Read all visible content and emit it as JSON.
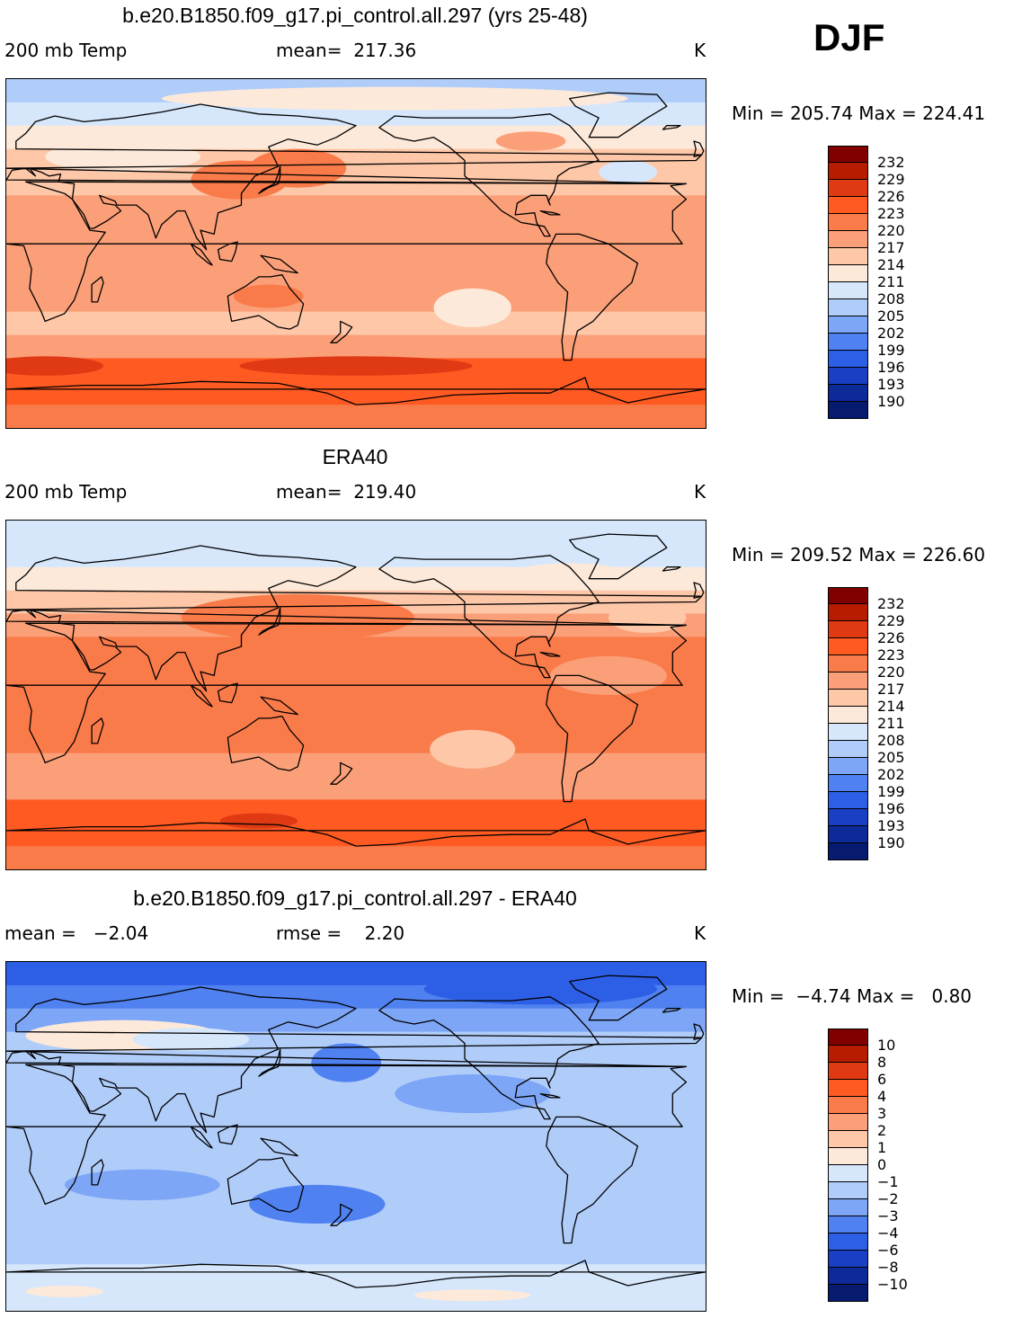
{
  "season": "DJF",
  "panels": [
    {
      "id": "model",
      "title": "b.e20.B1850.f09_g17.pi_control.all.297 (yrs 25-48)",
      "left_label": "200 mb Temp",
      "center_label": "mean=  217.36",
      "units": "K",
      "min_max": "Min = 205.74 Max = 224.41",
      "colorbar": {
        "labels": [
          "232",
          "229",
          "226",
          "223",
          "220",
          "217",
          "214",
          "211",
          "208",
          "205",
          "202",
          "199",
          "196",
          "193",
          "190"
        ],
        "colors": [
          "#800000",
          "#b81c00",
          "#e03a14",
          "#ff5a22",
          "#fa7b4a",
          "#fb9f78",
          "#fdc7a8",
          "#fde9da",
          "#d6e7fc",
          "#b0cdfa",
          "#7ea6f6",
          "#4f81f0",
          "#2d5fe6",
          "#1b3fc4",
          "#0c2a98",
          "#061a70"
        ]
      },
      "field": {
        "levels": [
          "#061a70",
          "#0c2a98",
          "#1b3fc4",
          "#2d5fe6",
          "#4f81f0",
          "#7ea6f6",
          "#b0cdfa",
          "#d6e7fc",
          "#fde9da",
          "#fdc7a8",
          "#fb9f78",
          "#fa7b4a",
          "#ff5a22",
          "#e03a14",
          "#b81c00",
          "#800000"
        ],
        "base": 10,
        "lat_bands": [
          [
            90,
            6
          ],
          [
            78,
            7
          ],
          [
            66,
            8
          ],
          [
            54,
            9
          ],
          [
            42,
            9
          ],
          [
            30,
            10
          ],
          [
            18,
            10
          ],
          [
            6,
            10
          ],
          [
            -6,
            10
          ],
          [
            -18,
            10
          ],
          [
            -30,
            9
          ],
          [
            -42,
            10
          ],
          [
            -54,
            12
          ],
          [
            -66,
            12
          ],
          [
            -78,
            11
          ],
          [
            -90,
            10
          ]
        ],
        "anomalies": [
          {
            "lon": 120,
            "lat": 38,
            "rlon": 25,
            "rlat": 10,
            "level": 11
          },
          {
            "lon": 150,
            "lat": 44,
            "rlon": 25,
            "rlat": 10,
            "level": 11
          },
          {
            "lon": 135,
            "lat": -22,
            "rlon": 18,
            "rlat": 6,
            "level": 11
          },
          {
            "lon": 240,
            "lat": -28,
            "rlon": 20,
            "rlat": 10,
            "level": 8
          },
          {
            "lon": 290,
            "lat": 38,
            "rlon": 40,
            "rlat": 6,
            "level": 9
          },
          {
            "lon": 320,
            "lat": 42,
            "rlon": 15,
            "rlat": 6,
            "level": 7
          },
          {
            "lon": 270,
            "lat": 58,
            "rlon": 18,
            "rlat": 5,
            "level": 10
          },
          {
            "lon": 20,
            "lat": -58,
            "rlon": 30,
            "rlat": 5,
            "level": 13
          },
          {
            "lon": 180,
            "lat": -58,
            "rlon": 60,
            "rlat": 5,
            "level": 13
          },
          {
            "lon": 60,
            "lat": 50,
            "rlon": 40,
            "rlat": 8,
            "level": 8
          },
          {
            "lon": 200,
            "lat": 80,
            "rlon": 120,
            "rlat": 6,
            "level": 8
          }
        ]
      }
    },
    {
      "id": "obs",
      "title": "ERA40",
      "left_label": "200 mb Temp",
      "center_label": "mean=  219.40",
      "units": "K",
      "min_max": "Min = 209.52 Max = 226.60",
      "colorbar": {
        "labels": [
          "232",
          "229",
          "226",
          "223",
          "220",
          "217",
          "214",
          "211",
          "208",
          "205",
          "202",
          "199",
          "196",
          "193",
          "190"
        ],
        "colors": [
          "#800000",
          "#b81c00",
          "#e03a14",
          "#ff5a22",
          "#fa7b4a",
          "#fb9f78",
          "#fdc7a8",
          "#fde9da",
          "#d6e7fc",
          "#b0cdfa",
          "#7ea6f6",
          "#4f81f0",
          "#2d5fe6",
          "#1b3fc4",
          "#0c2a98",
          "#061a70"
        ]
      },
      "field": {
        "levels": [
          "#061a70",
          "#0c2a98",
          "#1b3fc4",
          "#2d5fe6",
          "#4f81f0",
          "#7ea6f6",
          "#b0cdfa",
          "#d6e7fc",
          "#fde9da",
          "#fdc7a8",
          "#fb9f78",
          "#fa7b4a",
          "#ff5a22",
          "#e03a14",
          "#b81c00",
          "#800000"
        ],
        "base": 10,
        "lat_bands": [
          [
            90,
            7
          ],
          [
            78,
            7
          ],
          [
            66,
            8
          ],
          [
            54,
            9
          ],
          [
            42,
            10
          ],
          [
            30,
            11
          ],
          [
            18,
            11
          ],
          [
            6,
            11
          ],
          [
            -6,
            11
          ],
          [
            -18,
            11
          ],
          [
            -30,
            10
          ],
          [
            -42,
            10
          ],
          [
            -54,
            12
          ],
          [
            -66,
            12
          ],
          [
            -78,
            11
          ],
          [
            -90,
            11
          ]
        ],
        "anomalies": [
          {
            "lon": 150,
            "lat": 40,
            "rlon": 60,
            "rlat": 12,
            "level": 11
          },
          {
            "lon": 240,
            "lat": -28,
            "rlon": 22,
            "rlat": 10,
            "level": 9
          },
          {
            "lon": 310,
            "lat": 10,
            "rlon": 30,
            "rlat": 10,
            "level": 10
          },
          {
            "lon": 130,
            "lat": -65,
            "rlon": 20,
            "rlat": 4,
            "level": 13
          },
          {
            "lon": 290,
            "lat": 62,
            "rlon": 30,
            "rlat": 6,
            "level": 8
          },
          {
            "lon": 330,
            "lat": 40,
            "rlon": 20,
            "rlat": 8,
            "level": 9
          }
        ]
      }
    },
    {
      "id": "diff",
      "title": "b.e20.B1850.f09_g17.pi_control.all.297 - ERA40",
      "left_label": "mean =   −2.04",
      "center_label": "rmse =    2.20",
      "units": "K",
      "min_max": "Min =  −4.74 Max =   0.80",
      "colorbar": {
        "labels": [
          "10",
          "8",
          "6",
          "4",
          "3",
          "2",
          "1",
          "0",
          "−1",
          "−2",
          "−3",
          "−4",
          "−6",
          "−8",
          "−10"
        ],
        "colors": [
          "#800000",
          "#b81c00",
          "#e03a14",
          "#ff5a22",
          "#fa7b4a",
          "#fb9f78",
          "#fdc7a8",
          "#fde9da",
          "#d6e7fc",
          "#b0cdfa",
          "#7ea6f6",
          "#4f81f0",
          "#2d5fe6",
          "#1b3fc4",
          "#0c2a98",
          "#061a70"
        ]
      },
      "field": {
        "levels": [
          "#061a70",
          "#0c2a98",
          "#1b3fc4",
          "#2d5fe6",
          "#4f81f0",
          "#7ea6f6",
          "#b0cdfa",
          "#d6e7fc",
          "#fde9da",
          "#fdc7a8",
          "#fb9f78",
          "#fa7b4a",
          "#ff5a22",
          "#e03a14",
          "#b81c00",
          "#800000"
        ],
        "base": 6,
        "lat_bands": [
          [
            90,
            3
          ],
          [
            78,
            4
          ],
          [
            66,
            5
          ],
          [
            54,
            6
          ],
          [
            42,
            6
          ],
          [
            30,
            6
          ],
          [
            18,
            6
          ],
          [
            6,
            6
          ],
          [
            -6,
            6
          ],
          [
            -18,
            6
          ],
          [
            -30,
            6
          ],
          [
            -42,
            6
          ],
          [
            -54,
            6
          ],
          [
            -66,
            7
          ],
          [
            -78,
            7
          ],
          [
            -90,
            7
          ]
        ],
        "anomalies": [
          {
            "lon": 60,
            "lat": 52,
            "rlon": 50,
            "rlat": 8,
            "level": 8
          },
          {
            "lon": 95,
            "lat": 50,
            "rlon": 30,
            "rlat": 6,
            "level": 7
          },
          {
            "lon": 175,
            "lat": 38,
            "rlon": 18,
            "rlat": 10,
            "level": 4
          },
          {
            "lon": 160,
            "lat": -35,
            "rlon": 35,
            "rlat": 10,
            "level": 4
          },
          {
            "lon": 240,
            "lat": 22,
            "rlon": 40,
            "rlat": 10,
            "level": 5
          },
          {
            "lon": 275,
            "lat": 76,
            "rlon": 60,
            "rlat": 8,
            "level": 3
          },
          {
            "lon": 70,
            "lat": -25,
            "rlon": 40,
            "rlat": 8,
            "level": 5
          },
          {
            "lon": 30,
            "lat": -80,
            "rlon": 20,
            "rlat": 3,
            "level": 8
          },
          {
            "lon": 240,
            "lat": -82,
            "rlon": 30,
            "rlat": 3,
            "level": 8
          }
        ]
      }
    }
  ]
}
